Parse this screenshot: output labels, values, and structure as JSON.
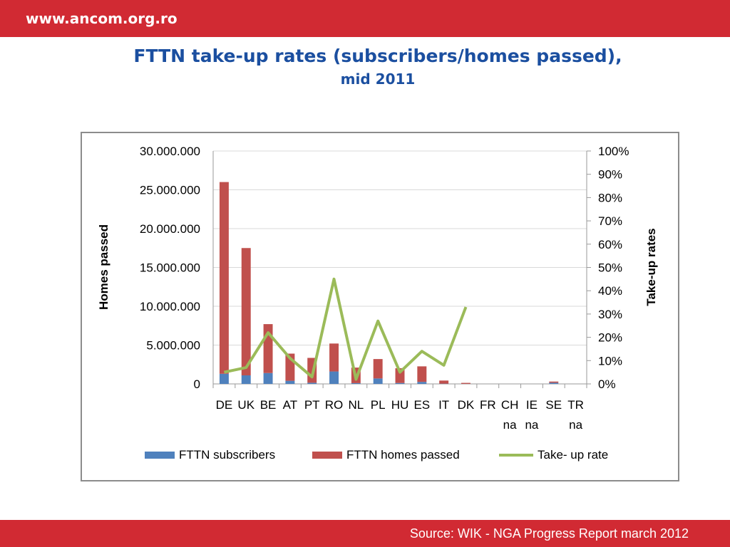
{
  "header": {
    "site_url": "www.ancom.org.ro"
  },
  "slide": {
    "title": "FTTN take-up rates (subscribers/homes passed),",
    "subtitle": "mid 2011"
  },
  "footer": {
    "source": "Source: WIK - NGA Progress Report march 2012"
  },
  "colors": {
    "brand_red": "#d12a33",
    "title_blue": "#1b4fa0",
    "subscribers": "#4f81bd",
    "homes_passed": "#c0504d",
    "take_up": "#9bbb59"
  },
  "chart_data": {
    "type": "bar",
    "stacked": true,
    "categories": [
      "DE",
      "UK",
      "BE",
      "AT",
      "PT",
      "RO",
      "NL",
      "PL",
      "HU",
      "ES",
      "IT",
      "DK",
      "FR",
      "CH",
      "IE",
      "SE",
      "TR"
    ],
    "category_notes": [
      "",
      "",
      "",
      "",
      "",
      "",
      "",
      "",
      "",
      "",
      "",
      "",
      "",
      "na",
      "na",
      "",
      "na"
    ],
    "series": [
      {
        "name": "FTTN subscribers",
        "kind": "bar",
        "axis": "left",
        "values": [
          1300000,
          1100000,
          1400000,
          400000,
          150000,
          1600000,
          100000,
          700000,
          120000,
          260000,
          30000,
          10000,
          0,
          0,
          0,
          150000,
          0
        ]
      },
      {
        "name": "FTTN homes passed",
        "kind": "bar",
        "axis": "left",
        "values": [
          24700000,
          16400000,
          6300000,
          3500000,
          3200000,
          3600000,
          2000000,
          2500000,
          1900000,
          2000000,
          400000,
          120000,
          0,
          0,
          0,
          150000,
          0
        ]
      },
      {
        "name": "Take- up rate",
        "kind": "line",
        "axis": "right",
        "values": [
          5,
          7,
          22,
          11,
          3,
          45,
          2,
          27,
          5,
          14,
          8,
          33,
          null,
          null,
          null,
          null,
          null
        ]
      }
    ],
    "ylabel": "Homes passed",
    "y2label": "Take-up rates",
    "ylim": [
      0,
      30000000
    ],
    "y2lim": [
      0,
      100
    ],
    "yticks": [
      "0",
      "5.000.000",
      "10.000.000",
      "15.000.000",
      "20.000.000",
      "25.000.000",
      "30.000.000"
    ],
    "y2ticks": [
      "0%",
      "10%",
      "20%",
      "30%",
      "40%",
      "50%",
      "60%",
      "70%",
      "80%",
      "90%",
      "100%"
    ],
    "grid": true,
    "legend_position": "bottom"
  }
}
